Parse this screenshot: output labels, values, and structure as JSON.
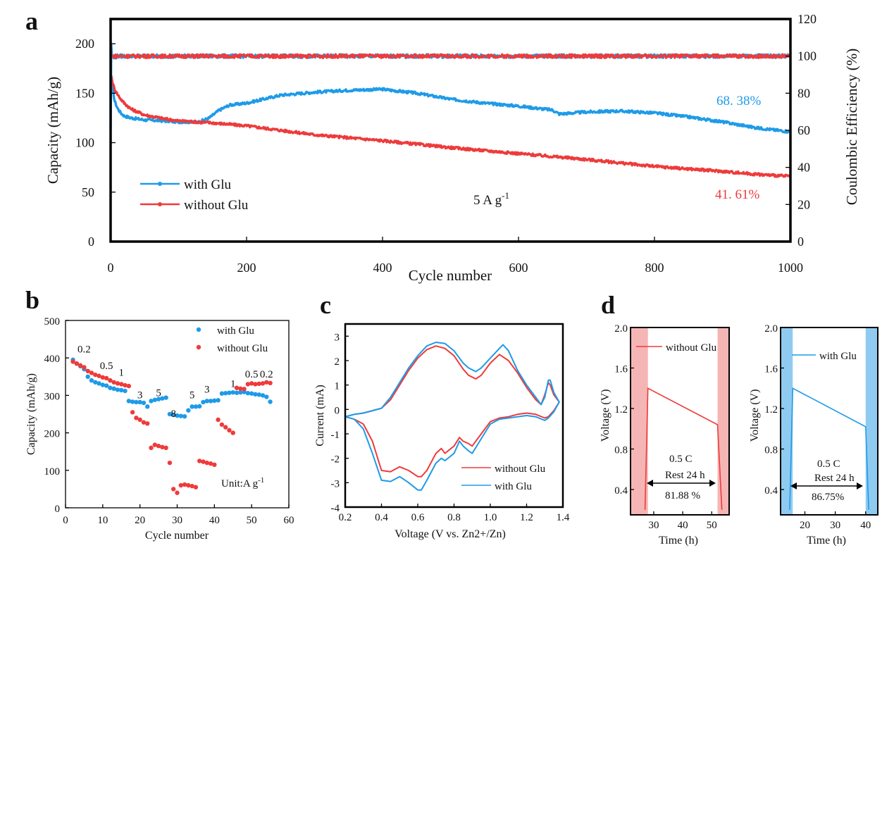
{
  "chart_data": [
    {
      "panel": "a",
      "type": "line",
      "xlabel": "Cycle number",
      "ylabel": "Capacity (mAh/g)",
      "y2label": "Coulombic Efficiency (%)",
      "xlim": [
        0,
        1000
      ],
      "ylim": [
        0,
        225
      ],
      "y2lim": [
        0,
        120
      ],
      "xticks": [
        0,
        200,
        400,
        600,
        800,
        1000
      ],
      "yticks": [
        0,
        50,
        100,
        150,
        200
      ],
      "y2ticks": [
        0,
        20,
        40,
        60,
        80,
        100,
        120
      ],
      "condition_label": "5 A g",
      "condition_sup": "-1",
      "legend": [
        "with Glu",
        "without Glu"
      ],
      "series": [
        {
          "name": "with Glu",
          "color": "#1e9be8",
          "x": [
            1,
            3,
            6,
            10,
            15,
            20,
            30,
            50,
            80,
            100,
            130,
            145,
            160,
            175,
            200,
            250,
            300,
            350,
            400,
            450,
            500,
            550,
            600,
            650,
            660,
            700,
            750,
            800,
            850,
            900,
            950,
            1000
          ],
          "y": [
            167,
            155,
            142,
            135,
            130,
            127,
            125,
            123,
            122,
            121,
            121,
            125,
            133,
            138,
            140,
            148,
            151,
            153,
            154,
            150,
            144,
            140,
            137,
            133,
            129,
            131,
            132,
            130,
            126,
            121,
            115,
            111
          ]
        },
        {
          "name": "without Glu",
          "color": "#ee3b3b",
          "x": [
            1,
            3,
            6,
            10,
            15,
            20,
            30,
            50,
            80,
            100,
            150,
            200,
            300,
            400,
            500,
            600,
            700,
            800,
            900,
            950,
            1000
          ],
          "y": [
            168,
            160,
            154,
            149,
            144,
            140,
            134,
            128,
            124,
            122,
            120,
            117,
            108,
            102,
            95,
            89,
            83,
            76,
            71,
            68,
            66
          ]
        },
        {
          "name": "with Glu CE",
          "color": "#1e9be8",
          "axis": "y2",
          "x": [
            0,
            1,
            2,
            5,
            10,
            1000
          ],
          "y": [
            60,
            106,
            100,
            99,
            100,
            100
          ]
        },
        {
          "name": "without Glu CE",
          "color": "#ee3b3b",
          "axis": "y2",
          "x": [
            0,
            1000
          ],
          "y": [
            100,
            100
          ]
        }
      ],
      "annotations": [
        {
          "text": "68. 38%",
          "color": "#1e9be8"
        },
        {
          "text": "41. 61%",
          "color": "#ee3b3b"
        }
      ]
    },
    {
      "panel": "b",
      "type": "scatter",
      "xlabel": "Cycle number",
      "ylabel": "Capacity (mAh/g)",
      "xlim": [
        0,
        60
      ],
      "ylim": [
        0,
        500
      ],
      "xticks": [
        0,
        10,
        20,
        30,
        40,
        50,
        60
      ],
      "yticks": [
        0,
        100,
        200,
        300,
        400,
        500
      ],
      "legend": [
        "with Glu",
        "without Glu"
      ],
      "unit_label": "Unit:A g",
      "unit_sup": "-1",
      "rate_labels": [
        "0.2",
        "0.5",
        "1",
        "3",
        "5",
        "8",
        "5",
        "3",
        "1",
        "0.5",
        "0.2"
      ],
      "series": [
        {
          "name": "with Glu",
          "color": "#1e9be8",
          "x": [
            2,
            3,
            4,
            5,
            6,
            7,
            8,
            9,
            10,
            11,
            12,
            13,
            14,
            15,
            16,
            17,
            18,
            19,
            20,
            21,
            22,
            23,
            24,
            25,
            26,
            27,
            28,
            29,
            30,
            31,
            32,
            33,
            34,
            35,
            36,
            37,
            38,
            39,
            40,
            41,
            42,
            43,
            44,
            45,
            46,
            47,
            48,
            49,
            50,
            51,
            52,
            53,
            54,
            55
          ],
          "y": [
            395,
            385,
            378,
            370,
            350,
            340,
            335,
            332,
            328,
            326,
            320,
            318,
            315,
            314,
            312,
            285,
            283,
            282,
            282,
            280,
            270,
            285,
            288,
            290,
            292,
            294,
            250,
            248,
            246,
            245,
            244,
            260,
            270,
            270,
            271,
            282,
            285,
            285,
            286,
            287,
            305,
            306,
            307,
            308,
            307,
            308,
            309,
            306,
            305,
            303,
            302,
            300,
            296,
            283
          ]
        },
        {
          "name": "without Glu",
          "color": "#ee3b3b",
          "x": [
            2,
            3,
            4,
            5,
            6,
            7,
            8,
            9,
            10,
            11,
            12,
            13,
            14,
            15,
            16,
            17,
            18,
            19,
            20,
            21,
            22,
            23,
            24,
            25,
            26,
            27,
            28,
            29,
            30,
            31,
            32,
            33,
            34,
            35,
            36,
            37,
            38,
            39,
            40,
            41,
            42,
            43,
            44,
            45,
            46,
            47,
            48,
            49,
            50,
            51,
            52,
            53,
            54,
            55
          ],
          "y": [
            390,
            385,
            380,
            375,
            365,
            360,
            355,
            352,
            348,
            346,
            340,
            335,
            332,
            330,
            327,
            325,
            255,
            240,
            235,
            228,
            225,
            160,
            168,
            165,
            162,
            160,
            120,
            50,
            40,
            60,
            62,
            60,
            58,
            55,
            125,
            123,
            120,
            118,
            115,
            235,
            222,
            215,
            207,
            200,
            320,
            318,
            317,
            330,
            332,
            330,
            331,
            332,
            335,
            333
          ]
        }
      ]
    },
    {
      "panel": "c",
      "type": "line",
      "xlabel": "Voltage (V vs. Zn2+/Zn)",
      "ylabel": "Current (mA)",
      "xlim": [
        0.2,
        1.4
      ],
      "ylim": [
        -4,
        3.5
      ],
      "xticks": [
        "0.2",
        "0.4",
        "0.6",
        "0.8",
        "1.0",
        "1.2",
        "1.4"
      ],
      "yticks": [
        -4,
        -3,
        -2,
        -1,
        0,
        1,
        2,
        3
      ],
      "legend": [
        "without Glu",
        "with Glu"
      ],
      "series": [
        {
          "name": "without Glu",
          "color": "#ee3b3b",
          "x": [
            1.38,
            1.35,
            1.33,
            1.32,
            1.3,
            1.28,
            1.25,
            1.2,
            1.15,
            1.1,
            1.05,
            1.0,
            0.95,
            0.92,
            0.88,
            0.85,
            0.8,
            0.75,
            0.7,
            0.65,
            0.6,
            0.55,
            0.5,
            0.45,
            0.4,
            0.35,
            0.3,
            0.25,
            0.2,
            0.25,
            0.3,
            0.35,
            0.4,
            0.45,
            0.5,
            0.55,
            0.6,
            0.62,
            0.65,
            0.7,
            0.73,
            0.75,
            0.8,
            0.83,
            0.85,
            0.88,
            0.9,
            0.95,
            1.0,
            1.05,
            1.1,
            1.15,
            1.2,
            1.25,
            1.3,
            1.32,
            1.35,
            1.38
          ],
          "y": [
            0.3,
            0.6,
            1.0,
            1.1,
            0.6,
            0.2,
            0.4,
            0.9,
            1.5,
            2.0,
            2.25,
            1.9,
            1.4,
            1.25,
            1.4,
            1.65,
            2.2,
            2.5,
            2.6,
            2.45,
            2.1,
            1.6,
            1.0,
            0.4,
            0.05,
            -0.05,
            -0.15,
            -0.2,
            -0.3,
            -0.4,
            -0.6,
            -1.3,
            -2.5,
            -2.55,
            -2.35,
            -2.5,
            -2.75,
            -2.75,
            -2.5,
            -1.8,
            -1.6,
            -1.8,
            -1.5,
            -1.15,
            -1.3,
            -1.4,
            -1.5,
            -1.0,
            -0.5,
            -0.35,
            -0.3,
            -0.2,
            -0.15,
            -0.2,
            -0.35,
            -0.3,
            -0.05,
            0.3
          ]
        },
        {
          "name": "with Glu",
          "color": "#1e9be8",
          "x": [
            1.38,
            1.35,
            1.33,
            1.32,
            1.3,
            1.28,
            1.25,
            1.2,
            1.15,
            1.1,
            1.07,
            1.05,
            1.0,
            0.95,
            0.92,
            0.88,
            0.85,
            0.8,
            0.75,
            0.7,
            0.65,
            0.6,
            0.55,
            0.5,
            0.45,
            0.4,
            0.35,
            0.3,
            0.25,
            0.2,
            0.25,
            0.3,
            0.35,
            0.4,
            0.45,
            0.5,
            0.55,
            0.6,
            0.62,
            0.65,
            0.7,
            0.73,
            0.75,
            0.8,
            0.83,
            0.85,
            0.88,
            0.9,
            0.95,
            1.0,
            1.05,
            1.1,
            1.15,
            1.2,
            1.25,
            1.3,
            1.32,
            1.35,
            1.38
          ],
          "y": [
            0.3,
            0.7,
            1.2,
            1.2,
            0.5,
            0.2,
            0.5,
            1.0,
            1.6,
            2.4,
            2.65,
            2.5,
            2.1,
            1.7,
            1.55,
            1.7,
            1.9,
            2.4,
            2.7,
            2.75,
            2.6,
            2.2,
            1.7,
            1.1,
            0.5,
            0.05,
            -0.05,
            -0.15,
            -0.2,
            -0.3,
            -0.4,
            -0.8,
            -1.8,
            -2.9,
            -2.95,
            -2.75,
            -3.0,
            -3.3,
            -3.3,
            -2.9,
            -2.2,
            -2.0,
            -2.1,
            -1.8,
            -1.3,
            -1.5,
            -1.7,
            -1.8,
            -1.2,
            -0.6,
            -0.4,
            -0.35,
            -0.3,
            -0.25,
            -0.3,
            -0.45,
            -0.35,
            -0.1,
            0.3
          ]
        }
      ]
    },
    {
      "panel": "d-left",
      "type": "line",
      "xlabel": "Time (h)",
      "ylabel": "Voltage (V)",
      "xlim": [
        22,
        56
      ],
      "ylim": [
        0.15,
        2.0
      ],
      "xticks": [
        30,
        40,
        50
      ],
      "yticks": [
        "0.4",
        "0.8",
        "1.2",
        "1.6",
        "2.0"
      ],
      "legend": [
        "without Glu"
      ],
      "rate": "0.5 C",
      "rest": "Rest 24 h",
      "retention": "81.88 %",
      "shade": [
        [
          22,
          28
        ],
        [
          52,
          56
        ]
      ],
      "shade_color": "#f5b5b5",
      "series": [
        {
          "name": "without Glu",
          "color": "#ee3b3b",
          "x": [
            27,
            28,
            52,
            53.5
          ],
          "y": [
            0.2,
            1.4,
            1.04,
            0.2
          ]
        }
      ]
    },
    {
      "panel": "d-right",
      "type": "line",
      "xlabel": "Time (h)",
      "ylabel": "Voltage (V)",
      "xlim": [
        12,
        44
      ],
      "ylim": [
        0.15,
        2.0
      ],
      "xticks": [
        20,
        30,
        40
      ],
      "yticks": [
        "0.4",
        "0.8",
        "1.2",
        "1.6",
        "2.0"
      ],
      "legend": [
        "with Glu"
      ],
      "rate": "0.5 C",
      "rest": "Rest 24 h",
      "retention": "86.75%",
      "shade": [
        [
          12,
          16
        ],
        [
          40,
          44
        ]
      ],
      "shade_color": "#8fcbf0",
      "series": [
        {
          "name": "with Glu",
          "color": "#1e9be8",
          "x": [
            15,
            16,
            40,
            41
          ],
          "y": [
            0.2,
            1.4,
            1.02,
            0.2
          ]
        }
      ]
    }
  ],
  "panel_labels": [
    "a",
    "b",
    "c",
    "d"
  ]
}
